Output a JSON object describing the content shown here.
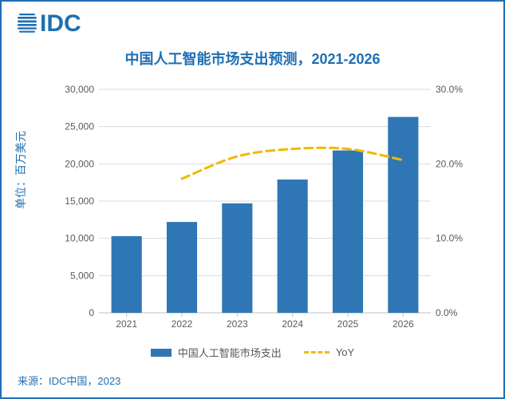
{
  "brand": {
    "name": "IDC",
    "color": "#1f6fb2",
    "logo_text": "IDC"
  },
  "title": {
    "text": "中国人工智能市场支出预测，2021-2026",
    "fontsize": 18,
    "color": "#1f6fb2"
  },
  "left_axis_title": {
    "text": "单位：百万美元",
    "fontsize": 14,
    "color": "#1f6fb2"
  },
  "source": {
    "text": "来源：IDC中国，2023",
    "fontsize": 13,
    "color": "#1f6fb2"
  },
  "chart": {
    "type": "bar+line",
    "background_color": "#ffffff",
    "grid_color": "#d9d9d9",
    "axis_color": "#bfbfbf",
    "tick_label_color": "#595959",
    "tick_label_fontsize": 12,
    "categories": [
      "2021",
      "2022",
      "2023",
      "2024",
      "2025",
      "2026"
    ],
    "series": {
      "bars": {
        "name": "中国人工智能市场支出",
        "values": [
          10300,
          12200,
          14700,
          17900,
          21800,
          26300
        ],
        "color": "#2f77b4",
        "bar_width": 0.55
      },
      "line": {
        "name": "YoY",
        "values_pct": [
          null,
          18.0,
          21.0,
          22.0,
          22.0,
          20.5
        ],
        "color": "#f2b900",
        "stroke_width": 3,
        "dash": "10 6"
      }
    },
    "y_left": {
      "min": 0,
      "max": 30000,
      "step": 5000,
      "labels": [
        "0",
        "5,000",
        "10,000",
        "15,000",
        "20,000",
        "25,000",
        "30,000"
      ]
    },
    "y_right": {
      "min": 0,
      "max": 30,
      "step": 10,
      "labels": [
        "0.0%",
        "10.0%",
        "20.0%",
        "30.0%"
      ]
    },
    "legend": {
      "bar_label": "中国人工智能市场支出",
      "line_label": "YoY",
      "text_color": "#595959",
      "fontsize": 13
    }
  }
}
